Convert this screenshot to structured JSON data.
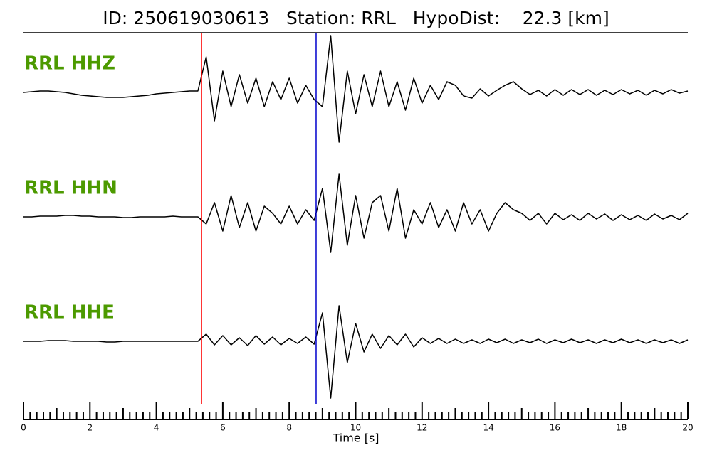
{
  "chart_data": {
    "type": "seismogram",
    "title": "ID: 250619030613   Station: RRL   HypoDist:    22.3 [km]",
    "xlabel": "Time [s]",
    "xlim": [
      0,
      20
    ],
    "xticks": [
      0,
      2,
      4,
      6,
      8,
      10,
      12,
      14,
      16,
      18,
      20
    ],
    "xmidticks": [
      1,
      3,
      5,
      7,
      9,
      11,
      13,
      15,
      17,
      19
    ],
    "xminorticks": [
      0.2,
      0.4,
      0.6,
      0.8,
      1.2,
      1.4,
      1.6,
      1.8,
      2.2,
      2.4,
      2.6,
      2.8,
      3.2,
      3.4,
      3.6,
      3.8,
      4.2,
      4.4,
      4.6,
      4.8,
      5.2,
      5.4,
      5.6,
      5.8,
      6.2,
      6.4,
      6.6,
      6.8,
      7.2,
      7.4,
      7.6,
      7.8,
      8.2,
      8.4,
      8.6,
      8.8,
      9.2,
      9.4,
      9.6,
      9.8,
      10.2,
      10.4,
      10.6,
      10.8,
      11.2,
      11.4,
      11.6,
      11.8,
      12.2,
      12.4,
      12.6,
      12.8,
      13.2,
      13.4,
      13.6,
      13.8,
      14.2,
      14.4,
      14.6,
      14.8,
      15.2,
      15.4,
      15.6,
      15.8,
      16.2,
      16.4,
      16.6,
      16.8,
      17.2,
      17.4,
      17.6,
      17.8,
      18.2,
      18.4,
      18.6,
      18.8,
      19.2,
      19.4,
      19.6,
      19.8
    ],
    "picks": [
      {
        "x": 5.36,
        "color": "#ff0000"
      },
      {
        "x": 8.81,
        "color": "#0000cc"
      }
    ],
    "label_color": "#4c9a00",
    "line_color": "#000000",
    "x": [
      0,
      0.25,
      0.5,
      0.75,
      1,
      1.25,
      1.5,
      1.75,
      2,
      2.25,
      2.5,
      2.75,
      3,
      3.25,
      3.5,
      3.75,
      4,
      4.25,
      4.5,
      4.75,
      5,
      5.25,
      5.5,
      5.75,
      6,
      6.25,
      6.5,
      6.75,
      7,
      7.25,
      7.5,
      7.75,
      8,
      8.25,
      8.5,
      8.75,
      9,
      9.25,
      9.5,
      9.75,
      10,
      10.25,
      10.5,
      10.75,
      11,
      11.25,
      11.5,
      11.75,
      12,
      12.25,
      12.5,
      12.75,
      13,
      13.25,
      13.5,
      13.75,
      14,
      14.25,
      14.5,
      14.75,
      15,
      15.25,
      15.5,
      15.75,
      16,
      16.25,
      16.5,
      16.75,
      17,
      17.25,
      17.5,
      17.75,
      18,
      18.25,
      18.5,
      18.75,
      19,
      19.25,
      19.5,
      19.75,
      20
    ],
    "series": [
      {
        "name": "RRL HHZ",
        "values": [
          0,
          0.1,
          0.2,
          0.2,
          0.1,
          0,
          -0.2,
          -0.4,
          -0.5,
          -0.6,
          -0.7,
          -0.7,
          -0.7,
          -0.6,
          -0.5,
          -0.4,
          -0.2,
          -0.1,
          0,
          0.1,
          0.2,
          0.2,
          5,
          -4,
          3,
          -2,
          2.5,
          -1.5,
          2,
          -2,
          1.5,
          -1,
          2,
          -1.5,
          1,
          -1,
          -2,
          8,
          -7,
          3,
          -3,
          2.5,
          -2,
          3,
          -2,
          1.5,
          -2.5,
          2,
          -1.5,
          1,
          -1,
          1.5,
          1,
          -0.5,
          -0.8,
          0.5,
          -0.5,
          0.3,
          1,
          1.5,
          0.5,
          -0.3,
          0.3,
          -0.5,
          0.4,
          -0.4,
          0.4,
          -0.3,
          0.4,
          -0.4,
          0.3,
          -0.3,
          0.4,
          -0.2,
          0.3,
          -0.4,
          0.3,
          -0.2,
          0.4,
          -0.1,
          0.2
        ]
      },
      {
        "name": "RRL HHN",
        "values": [
          0,
          0,
          0.1,
          0.1,
          0.1,
          0.2,
          0.2,
          0.1,
          0.1,
          0,
          0,
          0,
          -0.1,
          -0.1,
          0,
          0,
          0,
          0,
          0.1,
          0,
          0,
          0,
          -1,
          2,
          -2,
          3,
          -1.5,
          2,
          -2,
          1.5,
          0.5,
          -1,
          1.5,
          -1,
          1,
          -0.5,
          4,
          -5,
          6,
          -4,
          3,
          -3,
          2,
          3,
          -2,
          4,
          -3,
          1,
          -1,
          2,
          -1.5,
          1,
          -2,
          2,
          -1,
          1,
          -2,
          0.5,
          2,
          1,
          0.5,
          -0.5,
          0.5,
          -1,
          0.5,
          -0.4,
          0.3,
          -0.5,
          0.5,
          -0.3,
          0.4,
          -0.5,
          0.3,
          -0.4,
          0.2,
          -0.5,
          0.4,
          -0.3,
          0.2,
          -0.4,
          0.5
        ]
      },
      {
        "name": "RRL HHE",
        "values": [
          0,
          0,
          0,
          0.1,
          0.1,
          0.1,
          0,
          0,
          0,
          0,
          -0.1,
          -0.1,
          0,
          0,
          0,
          0,
          0,
          0,
          0,
          0,
          0,
          0,
          1,
          -0.5,
          0.8,
          -0.5,
          0.5,
          -0.6,
          0.8,
          -0.4,
          0.6,
          -0.5,
          0.4,
          -0.3,
          0.6,
          -0.4,
          4,
          -8,
          5,
          -3,
          2.5,
          -1.5,
          1,
          -1,
          0.8,
          -0.5,
          1,
          -0.8,
          0.5,
          -0.3,
          0.4,
          -0.3,
          0.3,
          -0.3,
          0.2,
          -0.3,
          0.3,
          -0.2,
          0.3,
          -0.3,
          0.2,
          -0.2,
          0.3,
          -0.3,
          0.2,
          -0.2,
          0.3,
          -0.2,
          0.2,
          -0.3,
          0.2,
          -0.2,
          0.3,
          -0.2,
          0.2,
          -0.3,
          0.2,
          -0.2,
          0.2,
          -0.3,
          0.2
        ]
      }
    ]
  }
}
